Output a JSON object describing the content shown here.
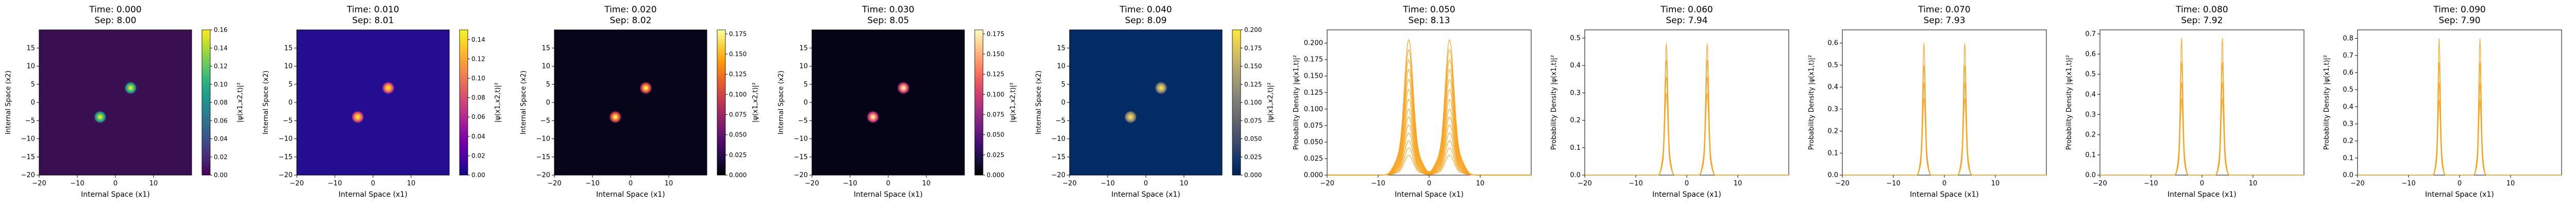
{
  "chart_data": [
    {
      "type": "heatmap",
      "title_time": "Time: 0.000",
      "title_sep": "Sep: 8.00",
      "xlabel": "Internal Space (x1)",
      "ylabel": "Internal Space (x2)",
      "xlim": [
        -20,
        20
      ],
      "ylim": [
        -20,
        20
      ],
      "xticks": [
        "−20",
        "−10",
        "0",
        "10"
      ],
      "yticks": [
        "−20",
        "−15",
        "−10",
        "−5",
        "0",
        "5",
        "10",
        "15"
      ],
      "colormap": "viridis",
      "background": "#3a0f52",
      "peaks": [
        {
          "x": -4.0,
          "y": -4.0
        },
        {
          "x": 4.0,
          "y": 4.0
        }
      ],
      "colorbar": {
        "label": "|ψ(x1,x2,t)|²",
        "ticks": [
          "0.00",
          "0.02",
          "0.04",
          "0.06",
          "0.08",
          "0.10",
          "0.12",
          "0.14",
          "0.16"
        ],
        "max": 0.16
      }
    },
    {
      "type": "heatmap",
      "title_time": "Time: 0.010",
      "title_sep": "Sep: 8.01",
      "xlabel": "Internal Space (x1)",
      "ylabel": "Internal Space (x2)",
      "xlim": [
        -20,
        20
      ],
      "ylim": [
        -20,
        20
      ],
      "xticks": [
        "−20",
        "−10",
        "0",
        "10"
      ],
      "yticks": [
        "−20",
        "−15",
        "−10",
        "−5",
        "0",
        "5",
        "10",
        "15"
      ],
      "colormap": "plasma",
      "background": "#250d92",
      "peaks": [
        {
          "x": -4.0,
          "y": -4.0
        },
        {
          "x": 4.0,
          "y": 4.0
        }
      ],
      "colorbar": {
        "label": "|ψ(x1,x2,t)|²",
        "ticks": [
          "0.00",
          "0.02",
          "0.04",
          "0.06",
          "0.08",
          "0.10",
          "0.12",
          "0.14"
        ],
        "max": 0.15
      }
    },
    {
      "type": "heatmap",
      "title_time": "Time: 0.020",
      "title_sep": "Sep: 8.02",
      "xlabel": "Internal Space (x1)",
      "ylabel": "Internal Space (x2)",
      "xlim": [
        -20,
        20
      ],
      "ylim": [
        -20,
        20
      ],
      "xticks": [
        "−20",
        "−10",
        "0",
        "10"
      ],
      "yticks": [
        "−20",
        "−15",
        "−10",
        "−5",
        "0",
        "5",
        "10",
        "15"
      ],
      "colormap": "inferno",
      "background": "#07051a",
      "peaks": [
        {
          "x": -4.0,
          "y": -4.0
        },
        {
          "x": 4.0,
          "y": 4.0
        }
      ],
      "colorbar": {
        "label": "|ψ(x1,x2,t)|²",
        "ticks": [
          "0.000",
          "0.025",
          "0.050",
          "0.075",
          "0.100",
          "0.125",
          "0.150",
          "0.175"
        ],
        "max": 0.18
      }
    },
    {
      "type": "heatmap",
      "title_time": "Time: 0.030",
      "title_sep": "Sep: 8.05",
      "xlabel": "Internal Space (x1)",
      "ylabel": "Internal Space (x2)",
      "xlim": [
        -20,
        20
      ],
      "ylim": [
        -20,
        20
      ],
      "xticks": [
        "−20",
        "−10",
        "0",
        "10"
      ],
      "yticks": [
        "−20",
        "−15",
        "−10",
        "−5",
        "0",
        "5",
        "10",
        "15"
      ],
      "colormap": "magma",
      "background": "#050416",
      "peaks": [
        {
          "x": -4.0,
          "y": -4.0
        },
        {
          "x": 4.0,
          "y": 4.0
        }
      ],
      "colorbar": {
        "label": "|ψ(x1,x2,t)|²",
        "ticks": [
          "0.000",
          "0.025",
          "0.050",
          "0.075",
          "0.100",
          "0.125",
          "0.150",
          "0.175"
        ],
        "max": 0.18
      }
    },
    {
      "type": "heatmap",
      "title_time": "Time: 0.040",
      "title_sep": "Sep: 8.09",
      "xlabel": "Internal Space (x1)",
      "ylabel": "Internal Space (x2)",
      "xlim": [
        -20,
        20
      ],
      "ylim": [
        -20,
        20
      ],
      "xticks": [
        "−20",
        "−10",
        "0",
        "10"
      ],
      "yticks": [
        "−20",
        "−15",
        "−10",
        "−5",
        "0",
        "5",
        "10",
        "15"
      ],
      "colormap": "cividis",
      "background": "#032c66",
      "peaks": [
        {
          "x": -4.0,
          "y": -4.0
        },
        {
          "x": 4.0,
          "y": 4.0
        }
      ],
      "colorbar": {
        "label": "|ψ(x1,x2,t)|²",
        "ticks": [
          "0.000",
          "0.025",
          "0.050",
          "0.075",
          "0.100",
          "0.125",
          "0.150",
          "0.175",
          "0.200"
        ],
        "max": 0.2
      }
    },
    {
      "type": "line",
      "title_time": "Time: 0.050",
      "title_sep": "Sep: 8.13",
      "xlabel": "Internal Space (x1)",
      "ylabel": "Probability Density |ψ(x1,t)|²",
      "xlim": [
        -20,
        20
      ],
      "ylim": [
        0,
        0.22
      ],
      "xticks": [
        -20,
        -10,
        0,
        10
      ],
      "xtick_labels": [
        "−20",
        "−10",
        "0",
        "10"
      ],
      "yticks": [
        0.0,
        0.025,
        0.05,
        0.075,
        0.1,
        0.125,
        0.15,
        0.175,
        0.2
      ],
      "ytick_labels": [
        "0.000",
        "0.025",
        "0.050",
        "0.075",
        "0.100",
        "0.125",
        "0.150",
        "0.175",
        "0.200"
      ],
      "line_color": "#f7a21b",
      "peaks": [
        -4.0,
        4.0
      ],
      "peak_width": 1.35,
      "curve_scales": [
        0.205,
        0.19,
        0.175,
        0.16,
        0.145,
        0.13,
        0.115,
        0.1,
        0.088,
        0.076,
        0.064,
        0.052,
        0.041,
        0.03
      ]
    },
    {
      "type": "line",
      "title_time": "Time: 0.060",
      "title_sep": "Sep: 7.94",
      "xlabel": "Internal Space (x1)",
      "ylabel": "Probability Density |ψ(x1,t)|²",
      "xlim": [
        -20,
        20
      ],
      "ylim": [
        0,
        0.53
      ],
      "xticks": [
        -20,
        -10,
        0,
        10
      ],
      "xtick_labels": [
        "−20",
        "−10",
        "0",
        "10"
      ],
      "yticks": [
        0.0,
        0.1,
        0.2,
        0.3,
        0.4,
        0.5
      ],
      "ytick_labels": [
        "0.0",
        "0.1",
        "0.2",
        "0.3",
        "0.4",
        "0.5"
      ],
      "line_color": "#f7a21b",
      "peaks": [
        -4.0,
        4.0
      ],
      "peak_width": 0.45,
      "curve_scales": [
        0.48,
        0.42,
        0.36,
        0.3
      ]
    },
    {
      "type": "line",
      "title_time": "Time: 0.070",
      "title_sep": "Sep: 7.93",
      "xlabel": "Internal Space (x1)",
      "ylabel": "Probability Density |ψ(x1,t)|²",
      "xlim": [
        -20,
        20
      ],
      "ylim": [
        0,
        0.66
      ],
      "xticks": [
        -20,
        -10,
        0,
        10
      ],
      "xtick_labels": [
        "−20",
        "−10",
        "0",
        "10"
      ],
      "yticks": [
        0.0,
        0.1,
        0.2,
        0.3,
        0.4,
        0.5,
        0.6
      ],
      "ytick_labels": [
        "0.0",
        "0.1",
        "0.2",
        "0.3",
        "0.4",
        "0.5",
        "0.6"
      ],
      "line_color": "#f7a21b",
      "peaks": [
        -4.0,
        4.0
      ],
      "peak_width": 0.4,
      "curve_scales": [
        0.6,
        0.5,
        0.42,
        0.35
      ]
    },
    {
      "type": "line",
      "title_time": "Time: 0.080",
      "title_sep": "Sep: 7.92",
      "xlabel": "Internal Space (x1)",
      "ylabel": "Probability Density |ψ(x1,t)|²",
      "xlim": [
        -20,
        20
      ],
      "ylim": [
        0,
        0.72
      ],
      "xticks": [
        -20,
        -10,
        0,
        10
      ],
      "xtick_labels": [
        "−20",
        "−10",
        "0",
        "10"
      ],
      "yticks": [
        0.0,
        0.1,
        0.2,
        0.3,
        0.4,
        0.5,
        0.6,
        0.7
      ],
      "ytick_labels": [
        "0.0",
        "0.1",
        "0.2",
        "0.3",
        "0.4",
        "0.5",
        "0.6",
        "0.7"
      ],
      "line_color": "#f7a21b",
      "peaks": [
        -4.0,
        4.0
      ],
      "peak_width": 0.38,
      "curve_scales": [
        0.68,
        0.56,
        0.46,
        0.38
      ]
    },
    {
      "type": "line",
      "title_time": "Time: 0.090",
      "title_sep": "Sep: 7.90",
      "xlabel": "Internal Space (x1)",
      "ylabel": "Probability Density |ψ(x1,t)|²",
      "xlim": [
        -20,
        20
      ],
      "ylim": [
        0,
        0.85
      ],
      "xticks": [
        -20,
        -10,
        0,
        10
      ],
      "xtick_labels": [
        "−20",
        "−10",
        "0",
        "10"
      ],
      "yticks": [
        0.0,
        0.1,
        0.2,
        0.3,
        0.4,
        0.5,
        0.6,
        0.7,
        0.8
      ],
      "ytick_labels": [
        "0.0",
        "0.1",
        "0.2",
        "0.3",
        "0.4",
        "0.5",
        "0.6",
        "0.7",
        "0.8"
      ],
      "line_color": "#f7a21b",
      "peaks": [
        -4.0,
        4.0
      ],
      "peak_width": 0.35,
      "curve_scales": [
        0.8,
        0.66,
        0.54,
        0.44
      ]
    }
  ]
}
